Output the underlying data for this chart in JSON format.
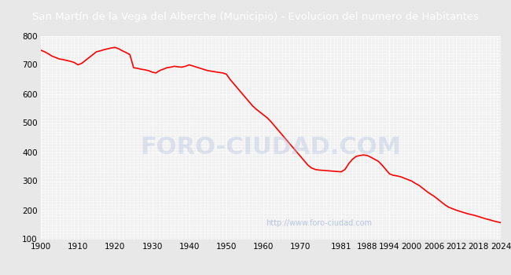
{
  "title": "San Martín de la Vega del Alberche (Municipio) - Evolucion del numero de Habitantes",
  "title_bg_color": "#4472c4",
  "title_text_color": "#ffffff",
  "line_color": "#ff0000",
  "bg_color": "#e8e8e8",
  "plot_bg_color": "#f0f0f0",
  "grid_color": "#ffffff",
  "watermark": "http://www.foro-ciudad.com",
  "watermark_color": "#aabbdd",
  "ylim": [
    100,
    800
  ],
  "yticks": [
    100,
    200,
    300,
    400,
    500,
    600,
    700,
    800
  ],
  "xticks": [
    1900,
    1910,
    1920,
    1930,
    1940,
    1950,
    1960,
    1970,
    1981,
    1988,
    1994,
    2000,
    2006,
    2012,
    2018,
    2024
  ],
  "years": [
    1900,
    1901,
    1902,
    1903,
    1904,
    1905,
    1906,
    1907,
    1908,
    1909,
    1910,
    1911,
    1912,
    1913,
    1914,
    1915,
    1916,
    1917,
    1918,
    1919,
    1920,
    1921,
    1922,
    1923,
    1924,
    1925,
    1926,
    1927,
    1928,
    1929,
    1930,
    1931,
    1932,
    1933,
    1934,
    1935,
    1936,
    1937,
    1938,
    1939,
    1940,
    1941,
    1942,
    1943,
    1944,
    1945,
    1946,
    1947,
    1948,
    1949,
    1950,
    1951,
    1952,
    1953,
    1954,
    1955,
    1956,
    1957,
    1958,
    1959,
    1960,
    1961,
    1962,
    1963,
    1964,
    1965,
    1966,
    1967,
    1968,
    1969,
    1970,
    1971,
    1972,
    1973,
    1974,
    1975,
    1976,
    1977,
    1978,
    1979,
    1980,
    1981,
    1982,
    1983,
    1984,
    1985,
    1986,
    1987,
    1988,
    1989,
    1990,
    1991,
    1992,
    1993,
    1994,
    1995,
    1996,
    1997,
    1998,
    1999,
    2000,
    2001,
    2002,
    2003,
    2004,
    2005,
    2006,
    2007,
    2008,
    2009,
    2010,
    2011,
    2012,
    2013,
    2014,
    2015,
    2016,
    2017,
    2018,
    2019,
    2020,
    2021,
    2022,
    2023,
    2024
  ],
  "population": [
    750,
    745,
    738,
    730,
    725,
    720,
    718,
    715,
    712,
    708,
    700,
    705,
    715,
    725,
    735,
    745,
    748,
    752,
    755,
    758,
    760,
    755,
    748,
    742,
    735,
    690,
    688,
    685,
    683,
    680,
    675,
    672,
    680,
    685,
    690,
    692,
    695,
    693,
    692,
    695,
    700,
    696,
    692,
    688,
    684,
    680,
    678,
    676,
    674,
    672,
    668,
    650,
    635,
    620,
    605,
    590,
    575,
    560,
    548,
    538,
    528,
    518,
    505,
    490,
    475,
    460,
    445,
    430,
    415,
    400,
    385,
    370,
    355,
    345,
    340,
    338,
    337,
    336,
    335,
    334,
    333,
    332,
    340,
    360,
    375,
    385,
    388,
    390,
    388,
    382,
    375,
    368,
    355,
    340,
    325,
    320,
    318,
    315,
    310,
    305,
    300,
    292,
    285,
    275,
    265,
    256,
    248,
    238,
    228,
    218,
    210,
    205,
    200,
    196,
    192,
    188,
    185,
    182,
    178,
    174,
    170,
    167,
    163,
    160,
    157
  ]
}
